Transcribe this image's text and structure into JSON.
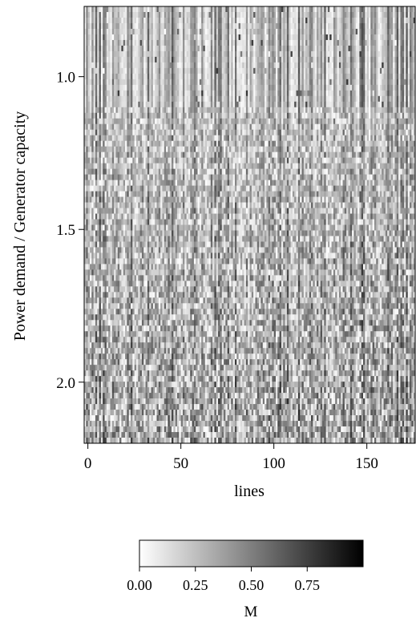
{
  "chart_data": {
    "type": "heatmap",
    "xlabel": "lines",
    "ylabel": "Power demand / Generator capacity",
    "xlim": [
      -2,
      176
    ],
    "ylim": [
      0.77,
      2.2
    ],
    "x_ticks": [
      {
        "value": 0,
        "label": "0"
      },
      {
        "value": 50,
        "label": "50"
      },
      {
        "value": 100,
        "label": "100"
      },
      {
        "value": 150,
        "label": "150"
      }
    ],
    "y_ticks": [
      {
        "value": 1.0,
        "label": "1.0"
      },
      {
        "value": 1.5,
        "label": "1.5"
      },
      {
        "value": 2.0,
        "label": "2.0"
      }
    ],
    "colormap": "greys",
    "colors": {
      "low": "#ffffff",
      "high": "#000000"
    },
    "colorbar": {
      "label": "M",
      "range": [
        0.0,
        1.0
      ],
      "ticks": [
        {
          "value": 0.0,
          "label": "0.00"
        },
        {
          "value": 0.25,
          "label": "0.25"
        },
        {
          "value": 0.5,
          "label": "0.50"
        },
        {
          "value": 0.75,
          "label": "0.75"
        }
      ],
      "orientation": "horizontal",
      "placement": "bottom"
    },
    "grid": false
  }
}
